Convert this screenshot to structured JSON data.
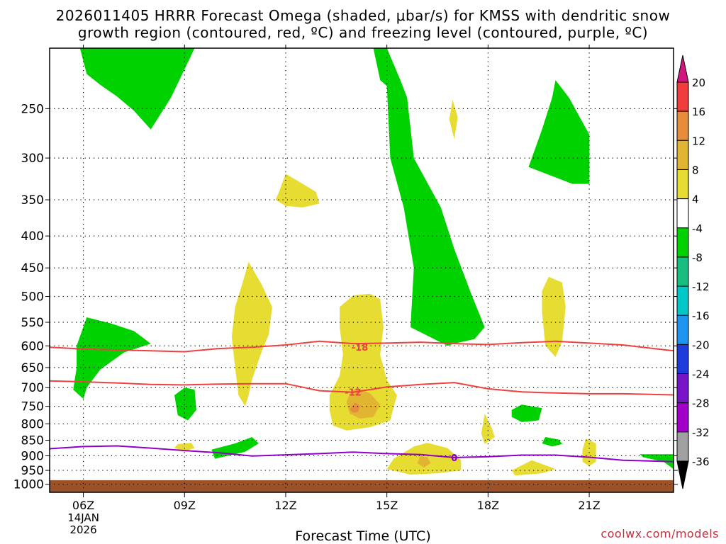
{
  "title_line1": "2026011405 HRRR Forecast Omega (shaded, μbar/s) for KMSS with dendritic snow",
  "title_line2": "growth region (contoured, red, ºC) and freezing level (contoured, purple, ºC)",
  "xlabel": "Forecast Time (UTC)",
  "credit": "coolwx.com/models",
  "colors": {
    "positive_4_8": "#e6dc32",
    "positive_8_12": "#e1b432",
    "positive_12_16": "#e68c3c",
    "negative_8_4": "#00d200",
    "dendritic": "#f04040",
    "freezing": "#9000c8",
    "ground": "#9c5228"
  },
  "chart_data": {
    "type": "heatmap",
    "x_ticks": [
      {
        "hour": 6,
        "label": "06Z",
        "sub1": "14JAN",
        "sub2": "2026"
      },
      {
        "hour": 9,
        "label": "09Z"
      },
      {
        "hour": 12,
        "label": "12Z"
      },
      {
        "hour": 15,
        "label": "15Z"
      },
      {
        "hour": 18,
        "label": "18Z"
      },
      {
        "hour": 21,
        "label": "21Z"
      }
    ],
    "xlim": [
      5,
      23.5
    ],
    "ylim": [
      1030,
      200
    ],
    "y_scale": "log-pressure",
    "y_ticks": [
      250,
      300,
      350,
      400,
      450,
      500,
      550,
      600,
      650,
      700,
      750,
      800,
      850,
      900,
      950,
      1000
    ],
    "grid": true,
    "colorbar": {
      "labels": [
        "20",
        "16",
        "12",
        "8",
        "4",
        "-4",
        "-8",
        "-12",
        "-16",
        "-20",
        "-24",
        "-28",
        "-32",
        "-36"
      ],
      "colors": [
        "#d2147d",
        "#f03c3c",
        "#e68c3c",
        "#e1b432",
        "#e6dc32",
        "#ffffff",
        "#00d200",
        "#16be80",
        "#00c8c8",
        "#1e96f0",
        "#1e3cdc",
        "#7814c8",
        "#a000c8",
        "#a0a0a0",
        "#000000"
      ]
    },
    "dendritic_contours": [
      {
        "label": "-18",
        "label_at": [
          14.2,
          603
        ],
        "points": [
          [
            5,
            603
          ],
          [
            6,
            607
          ],
          [
            7,
            609
          ],
          [
            8,
            611
          ],
          [
            9,
            613
          ],
          [
            10,
            606
          ],
          [
            11,
            603
          ],
          [
            12,
            598
          ],
          [
            13,
            590
          ],
          [
            14,
            595
          ],
          [
            15,
            594
          ],
          [
            16,
            592
          ],
          [
            17,
            595
          ],
          [
            18,
            597
          ],
          [
            19,
            593
          ],
          [
            20,
            590
          ],
          [
            21,
            594
          ],
          [
            22,
            598
          ],
          [
            23.5,
            611
          ]
        ]
      },
      {
        "label": "-12",
        "label_at": [
          14.0,
          712
        ],
        "points": [
          [
            5,
            683
          ],
          [
            6,
            685
          ],
          [
            7,
            688
          ],
          [
            8,
            692
          ],
          [
            9,
            693
          ],
          [
            10,
            691
          ],
          [
            11,
            690
          ],
          [
            12,
            690
          ],
          [
            13,
            708
          ],
          [
            14,
            712
          ],
          [
            15,
            698
          ],
          [
            16,
            692
          ],
          [
            17,
            687
          ],
          [
            18,
            703
          ],
          [
            19,
            711
          ],
          [
            20,
            714
          ],
          [
            21,
            716
          ],
          [
            22,
            716
          ],
          [
            23.5,
            719
          ]
        ]
      }
    ],
    "freezing_contour": {
      "label": "0",
      "label_at": [
        17.0,
        906
      ],
      "points": [
        [
          5,
          877
        ],
        [
          6,
          870
        ],
        [
          7,
          868
        ],
        [
          8,
          875
        ],
        [
          9,
          883
        ],
        [
          10,
          890
        ],
        [
          11,
          901
        ],
        [
          12,
          897
        ],
        [
          13,
          893
        ],
        [
          14,
          888
        ],
        [
          15,
          893
        ],
        [
          16,
          896
        ],
        [
          17,
          906
        ],
        [
          18,
          903
        ],
        [
          19,
          898
        ],
        [
          20,
          898
        ],
        [
          21,
          905
        ],
        [
          22,
          915
        ],
        [
          23.5,
          920
        ]
      ]
    },
    "negative_regions": [
      {
        "id": "neg-top-left",
        "points": [
          [
            5.9,
            200
          ],
          [
            8.0,
            200
          ],
          [
            8.8,
            200
          ],
          [
            9.3,
            200
          ],
          [
            8.6,
            240
          ],
          [
            8.0,
            270
          ],
          [
            7.5,
            252
          ],
          [
            7.0,
            239
          ],
          [
            6.5,
            229
          ],
          [
            6.1,
            220
          ]
        ]
      },
      {
        "id": "neg-left-low",
        "points": [
          [
            6.1,
            540
          ],
          [
            6.8,
            552
          ],
          [
            7.5,
            568
          ],
          [
            8.0,
            595
          ],
          [
            7.2,
            615
          ],
          [
            6.5,
            655
          ],
          [
            6.1,
            700
          ],
          [
            6.0,
            730
          ],
          [
            5.7,
            705
          ],
          [
            5.8,
            650
          ],
          [
            5.8,
            600
          ]
        ]
      },
      {
        "id": "neg-small-09z",
        "points": [
          [
            9.0,
            700
          ],
          [
            9.3,
            705
          ],
          [
            9.35,
            760
          ],
          [
            9.1,
            790
          ],
          [
            8.8,
            775
          ],
          [
            8.7,
            720
          ]
        ]
      },
      {
        "id": "neg-small-10z",
        "points": [
          [
            9.8,
            880
          ],
          [
            10.5,
            860
          ],
          [
            11.0,
            840
          ],
          [
            11.2,
            860
          ],
          [
            10.8,
            887
          ],
          [
            9.9,
            910
          ]
        ]
      },
      {
        "id": "neg-long-15z",
        "points": [
          [
            14.6,
            200
          ],
          [
            15.0,
            200
          ],
          [
            15.4,
            225
          ],
          [
            15.6,
            240
          ],
          [
            15.8,
            300
          ],
          [
            16.6,
            360
          ],
          [
            17.0,
            420
          ],
          [
            17.5,
            495
          ],
          [
            17.9,
            560
          ],
          [
            17.6,
            585
          ],
          [
            17.0,
            595
          ],
          [
            16.8,
            600
          ],
          [
            15.7,
            560
          ],
          [
            15.8,
            450
          ],
          [
            15.5,
            360
          ],
          [
            15.1,
            300
          ],
          [
            15.0,
            230
          ],
          [
            14.8,
            225
          ]
        ]
      },
      {
        "id": "neg-top-right",
        "points": [
          [
            20.0,
            225
          ],
          [
            20.4,
            240
          ],
          [
            21.0,
            275
          ],
          [
            21.0,
            330
          ],
          [
            20.5,
            330
          ],
          [
            19.2,
            310
          ],
          [
            19.6,
            270
          ],
          [
            19.9,
            240
          ]
        ]
      },
      {
        "id": "neg-small-19z",
        "points": [
          [
            19.0,
            745
          ],
          [
            19.6,
            755
          ],
          [
            19.5,
            790
          ],
          [
            19.0,
            795
          ],
          [
            18.7,
            780
          ],
          [
            18.7,
            760
          ]
        ]
      },
      {
        "id": "neg-small-20z",
        "points": [
          [
            19.7,
            840
          ],
          [
            20.1,
            848
          ],
          [
            20.2,
            862
          ],
          [
            19.9,
            870
          ],
          [
            19.6,
            860
          ]
        ]
      },
      {
        "id": "neg-right-edge",
        "points": [
          [
            22.5,
            895
          ],
          [
            23.5,
            895
          ],
          [
            23.5,
            945
          ],
          [
            23.2,
            920
          ],
          [
            22.6,
            905
          ]
        ]
      }
    ],
    "positive_regions": [
      {
        "id": "pos-12z-upper",
        "level": 4,
        "points": [
          [
            11.8,
            340
          ],
          [
            12.0,
            318
          ],
          [
            12.3,
            325
          ],
          [
            12.9,
            340
          ],
          [
            13.0,
            355
          ],
          [
            12.5,
            360
          ],
          [
            12.0,
            358
          ],
          [
            11.7,
            350
          ]
        ]
      },
      {
        "id": "pos-11z-column",
        "level": 4,
        "points": [
          [
            10.9,
            440
          ],
          [
            11.3,
            480
          ],
          [
            11.6,
            520
          ],
          [
            11.5,
            575
          ],
          [
            11.3,
            610
          ],
          [
            11.0,
            680
          ],
          [
            10.9,
            720
          ],
          [
            10.8,
            750
          ],
          [
            10.6,
            720
          ],
          [
            10.5,
            650
          ],
          [
            10.4,
            580
          ],
          [
            10.5,
            520
          ],
          [
            10.7,
            480
          ]
        ]
      },
      {
        "id": "pos-14z-big",
        "level": 4,
        "points": [
          [
            13.6,
            520
          ],
          [
            14.0,
            498
          ],
          [
            14.5,
            495
          ],
          [
            14.8,
            505
          ],
          [
            14.9,
            560
          ],
          [
            14.8,
            620
          ],
          [
            15.0,
            680
          ],
          [
            15.3,
            720
          ],
          [
            15.1,
            790
          ],
          [
            14.5,
            810
          ],
          [
            13.8,
            820
          ],
          [
            13.4,
            805
          ],
          [
            13.3,
            760
          ],
          [
            13.3,
            720
          ],
          [
            13.6,
            670
          ],
          [
            13.7,
            620
          ],
          [
            13.6,
            560
          ]
        ]
      },
      {
        "id": "pos-14z-mid",
        "level": 8,
        "points": [
          [
            14.1,
            700
          ],
          [
            14.5,
            715
          ],
          [
            14.8,
            745
          ],
          [
            14.6,
            780
          ],
          [
            14.2,
            785
          ],
          [
            13.9,
            770
          ],
          [
            13.8,
            740
          ],
          [
            13.9,
            715
          ]
        ]
      },
      {
        "id": "pos-14z-core",
        "level": 12,
        "points": [
          [
            14.05,
            740
          ],
          [
            14.2,
            748
          ],
          [
            14.15,
            765
          ],
          [
            14.0,
            768
          ],
          [
            13.9,
            758
          ]
        ]
      },
      {
        "id": "pos-16z-lower",
        "level": 4,
        "points": [
          [
            15.8,
            870
          ],
          [
            16.2,
            858
          ],
          [
            16.8,
            875
          ],
          [
            17.2,
            915
          ],
          [
            17.2,
            950
          ],
          [
            16.5,
            960
          ],
          [
            15.7,
            965
          ],
          [
            15.0,
            945
          ],
          [
            15.2,
            910
          ]
        ]
      },
      {
        "id": "pos-16z-inner",
        "level": 8,
        "points": [
          [
            16.0,
            900
          ],
          [
            16.2,
            905
          ],
          [
            16.3,
            925
          ],
          [
            16.1,
            940
          ],
          [
            15.9,
            925
          ]
        ]
      },
      {
        "id": "pos-17z-thin",
        "level": 4,
        "points": [
          [
            16.95,
            242
          ],
          [
            17.1,
            258
          ],
          [
            17.0,
            280
          ],
          [
            16.85,
            260
          ]
        ]
      },
      {
        "id": "pos-09z-small",
        "level": 4,
        "points": [
          [
            8.8,
            862
          ],
          [
            9.2,
            858
          ],
          [
            9.3,
            875
          ],
          [
            9.0,
            885
          ],
          [
            8.7,
            875
          ]
        ]
      },
      {
        "id": "pos-18z-thin",
        "level": 4,
        "points": [
          [
            17.9,
            770
          ],
          [
            18.1,
            810
          ],
          [
            18.2,
            840
          ],
          [
            17.9,
            862
          ],
          [
            17.8,
            830
          ]
        ]
      },
      {
        "id": "pos-19z-lower",
        "level": 4,
        "points": [
          [
            19.3,
            915
          ],
          [
            20.0,
            945
          ],
          [
            19.6,
            960
          ],
          [
            18.8,
            968
          ],
          [
            18.7,
            950
          ]
        ]
      },
      {
        "id": "pos-20z-column",
        "level": 4,
        "points": [
          [
            19.8,
            465
          ],
          [
            20.2,
            475
          ],
          [
            20.3,
            520
          ],
          [
            20.2,
            590
          ],
          [
            20.0,
            625
          ],
          [
            19.7,
            600
          ],
          [
            19.6,
            530
          ],
          [
            19.6,
            490
          ]
        ]
      },
      {
        "id": "pos-21z-thin",
        "level": 4,
        "points": [
          [
            20.9,
            845
          ],
          [
            21.2,
            860
          ],
          [
            21.2,
            920
          ],
          [
            21.0,
            935
          ],
          [
            20.8,
            920
          ],
          [
            20.8,
            880
          ]
        ]
      }
    ]
  }
}
